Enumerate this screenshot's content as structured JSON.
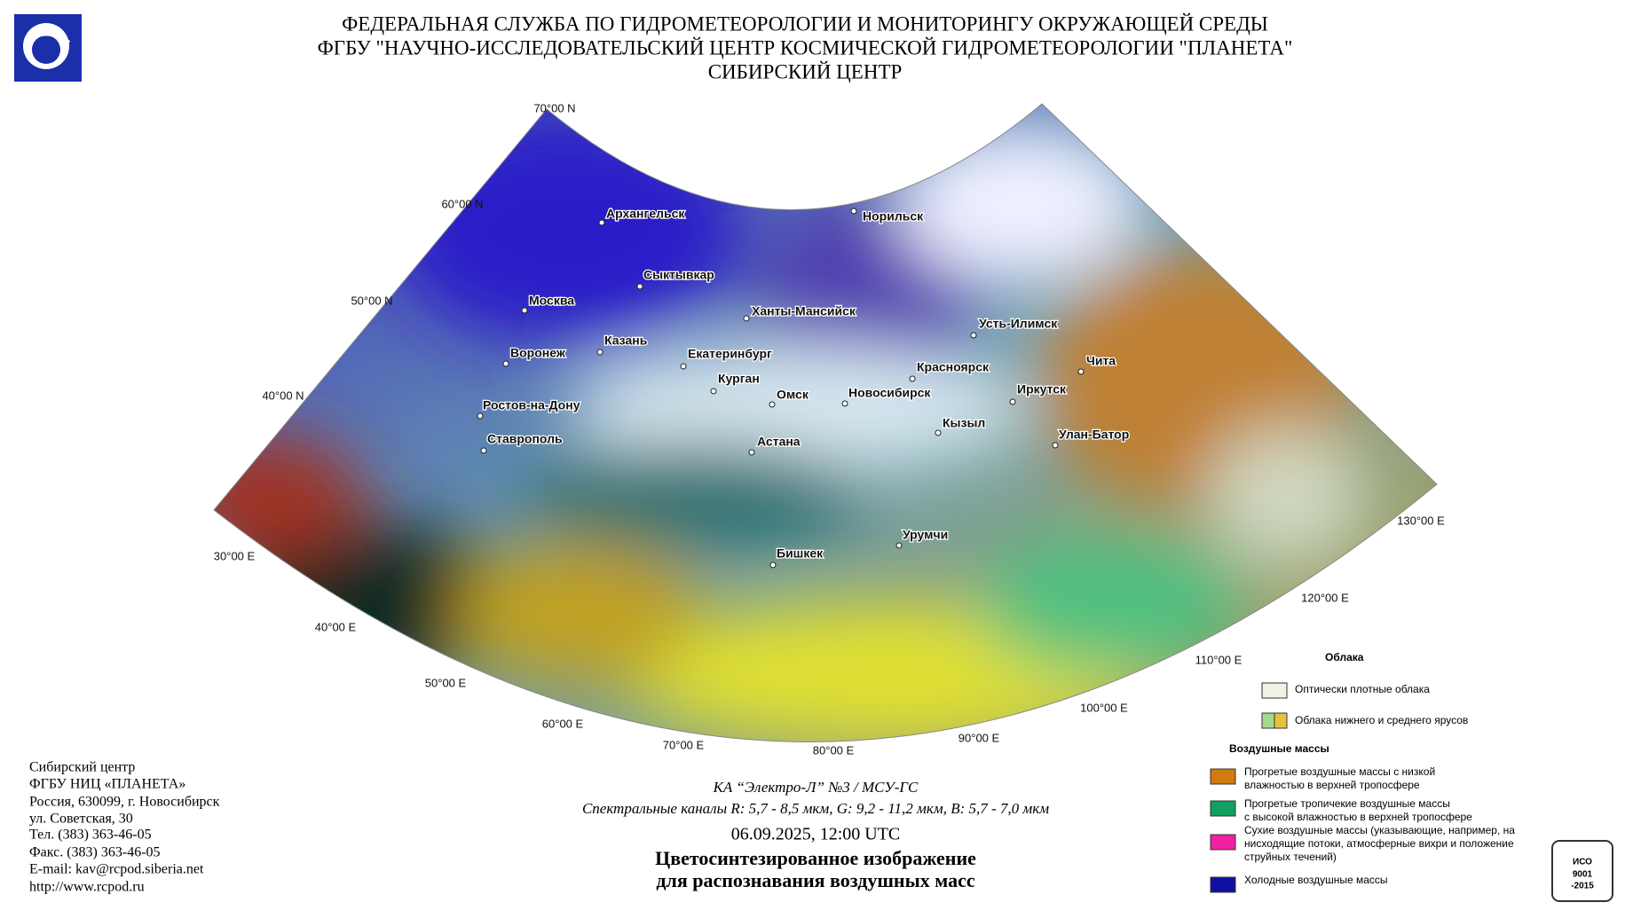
{
  "header": {
    "lines": [
      "ФЕДЕРАЛЬНАЯ СЛУЖБА ПО ГИДРОМЕТЕОРОЛОГИИ И МОНИТОРИНГУ ОКРУЖАЮЩЕЙ СРЕДЫ",
      "ФГБУ \"НАУЧНО-ИССЛЕДОВАТЕЛЬСКИЙ ЦЕНТР КОСМИЧЕСКОЙ ГИДРОМЕТЕОРОЛОГИИ \"ПЛАНЕТА\"",
      "СИБИРСКИЙ ЦЕНТР"
    ]
  },
  "map": {
    "lat_labels": [
      "70°00 N",
      "60°00 N",
      "50°00 N",
      "40°00 N"
    ],
    "lon_labels": [
      "30°00 E",
      "40°00 E",
      "50°00 E",
      "60°00 E",
      "70°00 E",
      "80°00 E",
      "90°00 E",
      "100°00 E",
      "110°00 E",
      "120°00 E",
      "130°00 E"
    ],
    "cities": [
      "Архангельск",
      "Норильск",
      "Сыктывкар",
      "Москва",
      "Ханты-Мансийск",
      "Усть-Илимск",
      "Казань",
      "Воронеж",
      "Екатеринбург",
      "Красноярск",
      "Чита",
      "Курган",
      "Омск",
      "Новосибирск",
      "Иркутск",
      "Ростов-на-Дону",
      "Кызыл",
      "Улан-Батор",
      "Ставрополь",
      "Астана",
      "Урумчи",
      "Бишкек"
    ]
  },
  "caption": {
    "satellite": "КА “Электро-Л” №3 / МСУ-ГС",
    "channels": "Спектральные каналы R: 5,7 - 8,5 мкм, G: 9,2 - 11,2 мкм, B: 5,7 - 7,0 мкм",
    "datetime": "06.09.2025, 12:00 UTC",
    "title": [
      "Цветосинтезированное изображение",
      "для распознавания воздушных масс"
    ]
  },
  "contact": {
    "lines": [
      "Сибирский центр",
      "ФГБУ НИЦ «ПЛАНЕТА»",
      "Россия, 630099, г. Новосибирск",
      "ул. Советская, 30",
      "Тел. (383) 363-46-05",
      "Факс. (383) 363-46-05",
      "E-mail: kav@rcpod.siberia.net",
      "http://www.rcpod.ru"
    ]
  },
  "legend": {
    "clouds": {
      "title": "Облака",
      "items": [
        [
          "Оптически плотные облака"
        ],
        [
          "Облака нижнего и среднего ярусов"
        ]
      ]
    },
    "air_masses": {
      "title": "Воздушные массы",
      "items": [
        [
          "Прогретые воздушные массы с низкой",
          "влажностью в верхней тропосфере"
        ],
        [
          "Прогретые тропичекие воздушные массы",
          "с высокой влажностью в верхней тропосфере"
        ],
        [
          "Сухие воздушные массы (указывающие, например, на",
          "нисходящие потоки, атмосферные вихри и положение",
          "струйных течений)"
        ],
        [
          "Холодные воздушные массы"
        ]
      ]
    }
  },
  "badge": {
    "lines": [
      "ИСО",
      "9001",
      "-2015"
    ]
  }
}
